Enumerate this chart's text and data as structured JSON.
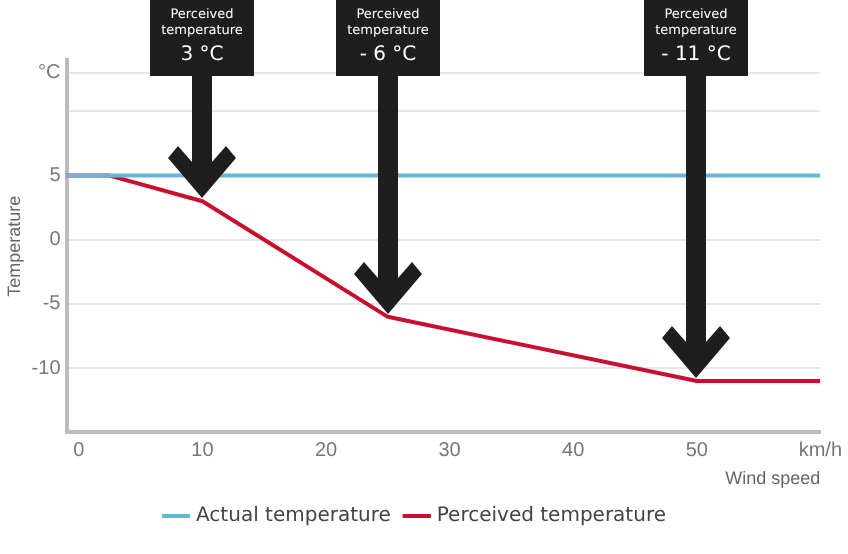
{
  "chart_data": {
    "type": "line",
    "xlabel": "Wind speed",
    "ylabel": "Temperature",
    "x": [
      -1,
      2.5,
      10,
      25,
      50,
      60
    ],
    "series": [
      {
        "name": "Actual temperature",
        "color": "#6ab4d9",
        "x": [
          -1,
          60
        ],
        "values": [
          5,
          5
        ]
      },
      {
        "name": "Perceived temperature",
        "color": "#c8102e",
        "values": [
          5,
          5,
          3,
          -6,
          -11,
          -11
        ]
      }
    ],
    "xlim": [
      -1,
      60
    ],
    "xticks": [
      0,
      10,
      20,
      30,
      40,
      50,
      {
        "value": 60,
        "label": "km/h"
      }
    ],
    "ylim": [
      -15,
      14
    ],
    "yticks": [
      {
        "value": -15,
        "label": null
      },
      -10,
      -5,
      0,
      5,
      {
        "value": 10,
        "label": null
      },
      {
        "value": 13,
        "label": "°C"
      }
    ],
    "grid": "y",
    "legend": "bottom",
    "marker": "none",
    "line_style": "solid",
    "annotations": [
      "Perceived temperature\n3 °C",
      "Perceived temperature\n- 6 °C",
      "Perceived temperature\n- 11 °C"
    ]
  }
}
